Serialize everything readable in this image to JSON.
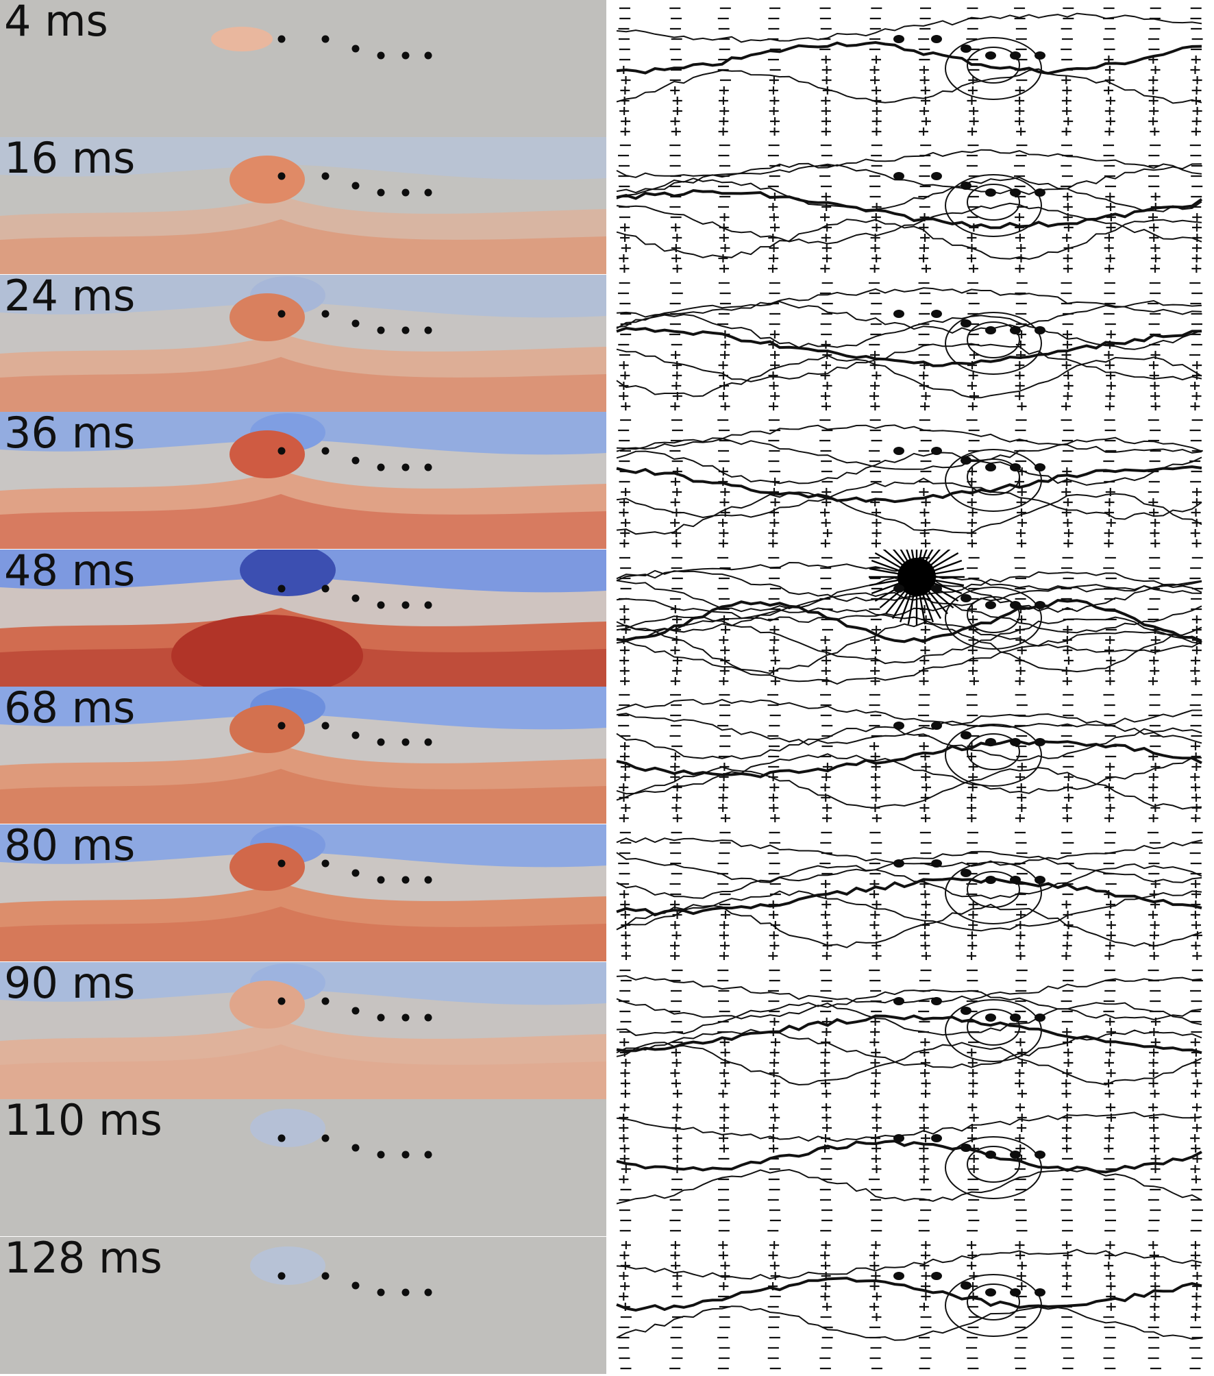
{
  "figure": {
    "panels": [
      {
        "time_label": "4 ms",
        "field": {
          "base": "#c0bfbc",
          "upper": null,
          "lower": null,
          "hot": "#e9b79e",
          "cold": null
        }
      },
      {
        "time_label": "16 ms",
        "field": {
          "base": "#c3c2bf",
          "upper": "#b9c3d3",
          "lower": "#d8b5a2",
          "hot": "#e08a66",
          "cold": null
        }
      },
      {
        "time_label": "24 ms",
        "field": {
          "base": "#c7c4c2",
          "upper": "#b2bfd6",
          "lower": "#ddae96",
          "hot": "#d9805e",
          "cold": "#a7b7d8"
        }
      },
      {
        "time_label": "36 ms",
        "field": {
          "base": "#c9c6c4",
          "upper": "#93ace0",
          "lower": "#e0a286",
          "hot": "#cf5b42",
          "cold": "#7f9ee2"
        }
      },
      {
        "time_label": "48 ms",
        "field": {
          "base": "#cfc4c0",
          "upper": "#7d99e0",
          "lower": "#d16c50",
          "hot": "#b13428",
          "cold": "#3c4fb1"
        }
      },
      {
        "time_label": "68 ms",
        "field": {
          "base": "#cac6c4",
          "upper": "#8aa6e4",
          "lower": "#de9a7b",
          "hot": "#d3714f",
          "cold": "#6d8fdd"
        }
      },
      {
        "time_label": "80 ms",
        "field": {
          "base": "#cbc6c3",
          "upper": "#8da8e2",
          "lower": "#dc8e6c",
          "hot": "#d1684a",
          "cold": "#7c9ae0"
        }
      },
      {
        "time_label": "90 ms",
        "field": {
          "base": "#c7c3c1",
          "upper": "#a9bbdc",
          "lower": "#dfb29b",
          "hot": "#e0a68b",
          "cold": "#9db3df"
        }
      },
      {
        "time_label": "110 ms",
        "field": {
          "base": "#c0bfbc",
          "upper": null,
          "lower": null,
          "hot": null,
          "cold": "#b5c0d6"
        }
      },
      {
        "time_label": "128 ms",
        "field": {
          "base": "#c0bfbc",
          "upper": null,
          "lower": null,
          "hot": null,
          "cold": "#b7c2d6"
        }
      }
    ]
  }
}
